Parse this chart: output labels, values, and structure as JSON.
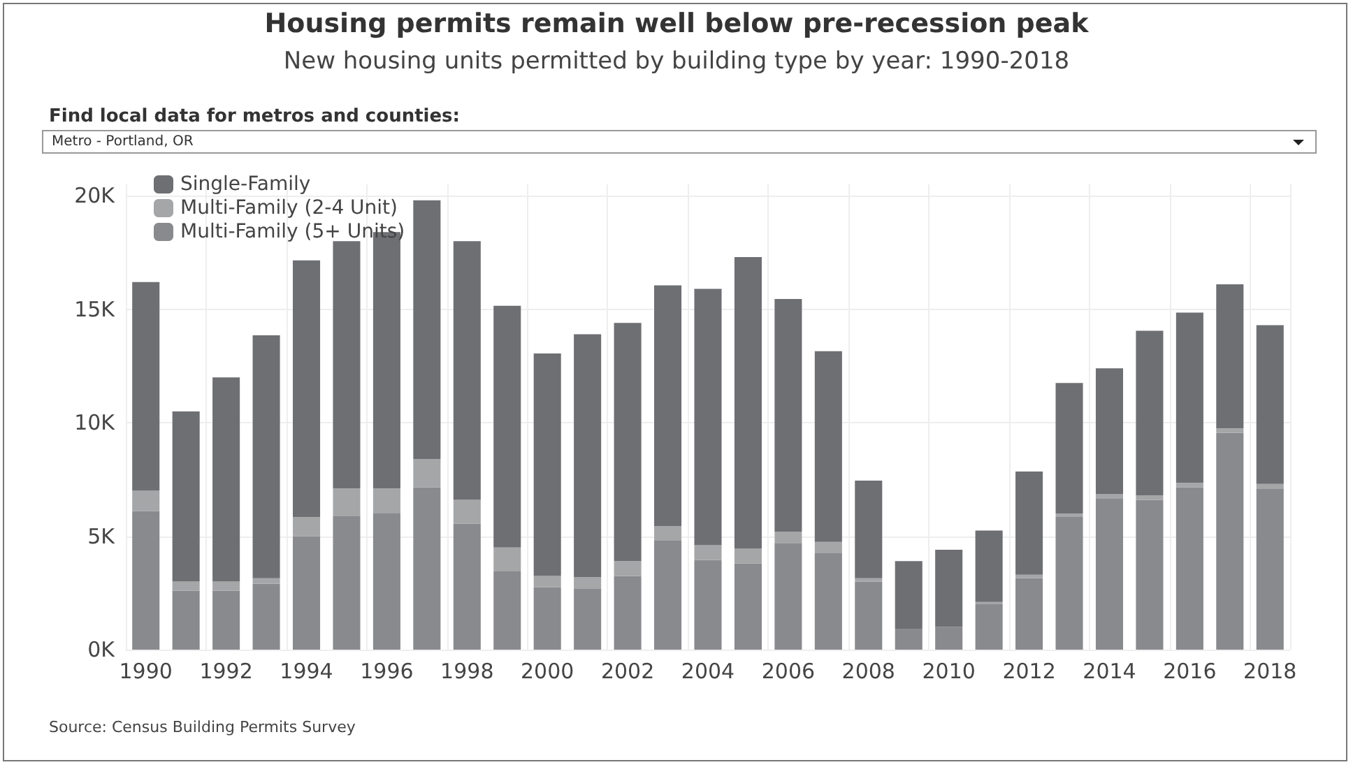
{
  "chart_data": {
    "type": "bar",
    "stacked": true,
    "title": "Housing permits remain well below pre-recession peak",
    "subtitle": "New housing units permitted by building type by year: 1990-2018",
    "annotations": [
      "Find local data for metros and counties:",
      "Metro - Portland, OR",
      "Source: Census Building Permits Survey"
    ],
    "categories": [
      "1990",
      null,
      "1992",
      null,
      "1994",
      null,
      "1996",
      null,
      "1998",
      null,
      "2000",
      null,
      "2002",
      null,
      "2004",
      null,
      "2006",
      null,
      "2008",
      null,
      "2010",
      null,
      "2012",
      null,
      "2014",
      null,
      "2016",
      null,
      "2018"
    ],
    "series": [
      {
        "name": "Multi-Family (5+ Units)",
        "color": "#898a8d",
        "values": [
          6100,
          2600,
          2600,
          2900,
          5000,
          5900,
          6000,
          7150,
          5550,
          3450,
          2750,
          2700,
          3250,
          4800,
          3950,
          3800,
          4700,
          4250,
          3000,
          900,
          1000,
          2000,
          3150,
          5850,
          6650,
          6600,
          7150,
          9550,
          7100
        ]
      },
      {
        "name": "Multi-Family (2-4 Unit)",
        "color": "#a5a6a8",
        "values": [
          900,
          400,
          400,
          250,
          850,
          1200,
          1100,
          1250,
          1050,
          1050,
          500,
          500,
          650,
          650,
          650,
          650,
          500,
          500,
          150,
          null,
          null,
          100,
          150,
          150,
          200,
          200,
          200,
          200,
          200
        ]
      },
      {
        "name": "Single-Family",
        "color": "#6e6f73",
        "values": [
          9200,
          7500,
          9000,
          10700,
          11300,
          10900,
          11300,
          11400,
          11400,
          10650,
          9800,
          10700,
          10500,
          10600,
          11300,
          12850,
          10250,
          8400,
          4300,
          3000,
          3400,
          3150,
          4550,
          5750,
          5550,
          7250,
          7500,
          6350,
          7000
        ]
      }
    ],
    "ylim": [
      0,
      20500
    ],
    "yticks": [
      {
        "value": 0,
        "label": "0K"
      },
      {
        "value": 5000,
        "label": "5K"
      },
      {
        "value": 10000,
        "label": "10K"
      },
      {
        "value": 15000,
        "label": "15K"
      },
      {
        "value": 20000,
        "label": "20K"
      }
    ],
    "grid": true,
    "legend": "top left"
  }
}
